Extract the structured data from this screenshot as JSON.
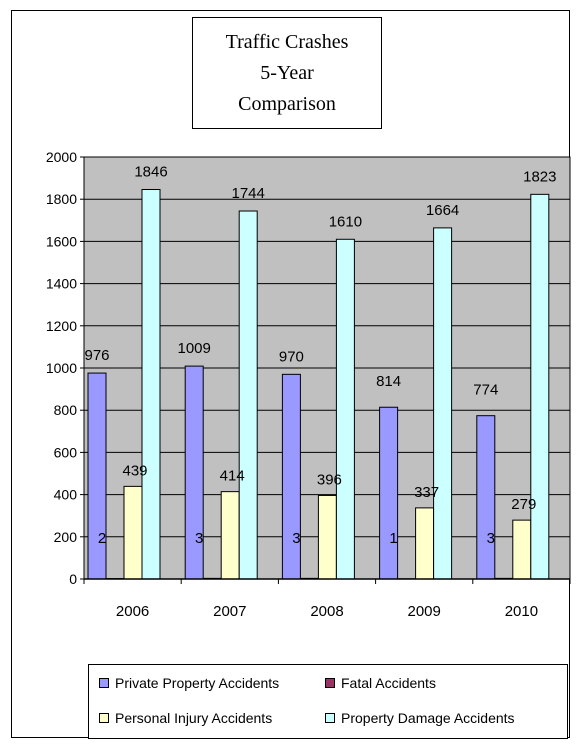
{
  "chart_data": {
    "type": "bar",
    "title_lines": [
      "Traffic Crashes",
      "5-Year",
      "Comparison"
    ],
    "categories": [
      "2006",
      "2007",
      "2008",
      "2009",
      "2010"
    ],
    "series": [
      {
        "name": "Private Property Accidents",
        "color": "#9999ff",
        "values": [
          976,
          1009,
          970,
          814,
          774
        ]
      },
      {
        "name": "Fatal Accidents",
        "color": "#993366",
        "values": [
          2,
          3,
          3,
          1,
          3
        ]
      },
      {
        "name": "Personal Injury Accidents",
        "color": "#ffffcc",
        "values": [
          439,
          414,
          396,
          337,
          279
        ]
      },
      {
        "name": "Property Damage Accidents",
        "color": "#ccffff",
        "values": [
          1846,
          1744,
          1610,
          1664,
          1823
        ]
      }
    ],
    "ylim": [
      0,
      2000
    ],
    "yticks": [
      "0",
      "200",
      "400",
      "600",
      "800",
      "1000",
      "1200",
      "1400",
      "1600",
      "1800",
      "2000"
    ],
    "grid": true,
    "plot_background": "#c0c0c0",
    "legend_position": "bottom"
  }
}
